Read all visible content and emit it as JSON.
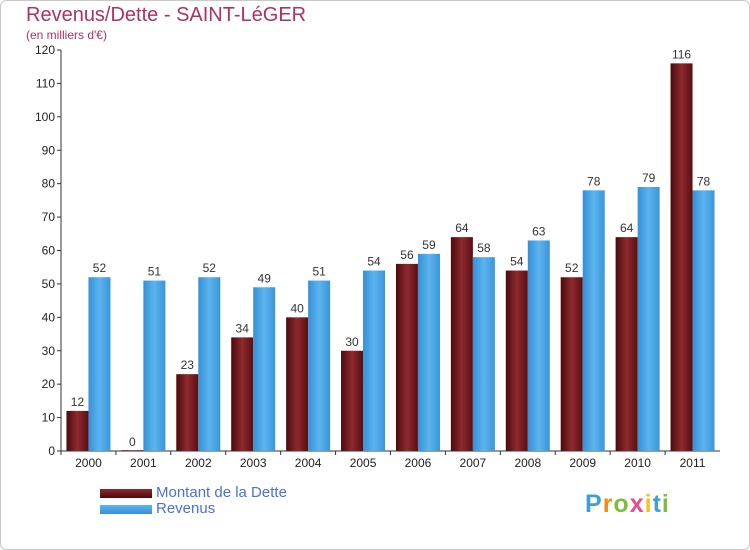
{
  "header": {
    "title": "Revenus/Dette - SAINT-LéGER",
    "subtitle": "(en milliers d'€)"
  },
  "colors": {
    "debt": "#6e1416",
    "revenue": "#4ea7e8",
    "title": "#b03060",
    "legend_text": "#4c6fd8"
  },
  "logo": {
    "text": "Proxiti",
    "letters": [
      "P",
      "r",
      "o",
      "x",
      "i",
      "t",
      "i"
    ],
    "letter_colors": [
      "#3fa0d8",
      "#f08a1c",
      "#7cbf3a",
      "#e84c8a",
      "#f0c418",
      "#3fa0d8",
      "#7cbf3a"
    ]
  },
  "chart_data": {
    "type": "bar",
    "title": "Revenus/Dette - SAINT-LéGER",
    "ylabel": "(en milliers d'€)",
    "categories": [
      "2000",
      "2001",
      "2002",
      "2003",
      "2004",
      "2005",
      "2006",
      "2007",
      "2008",
      "2009",
      "2010",
      "2011"
    ],
    "series": [
      {
        "name": "Montant de la Dette",
        "values": [
          12,
          0,
          23,
          34,
          40,
          30,
          56,
          64,
          54,
          52,
          64,
          116
        ]
      },
      {
        "name": "Revenus",
        "values": [
          52,
          51,
          52,
          49,
          51,
          54,
          59,
          58,
          63,
          78,
          79,
          78
        ]
      }
    ],
    "ylim": [
      0,
      120
    ],
    "yticks": [
      0,
      10,
      20,
      30,
      40,
      50,
      60,
      70,
      80,
      90,
      100,
      110,
      120
    ],
    "grid": false,
    "legend": "bottom-left"
  }
}
